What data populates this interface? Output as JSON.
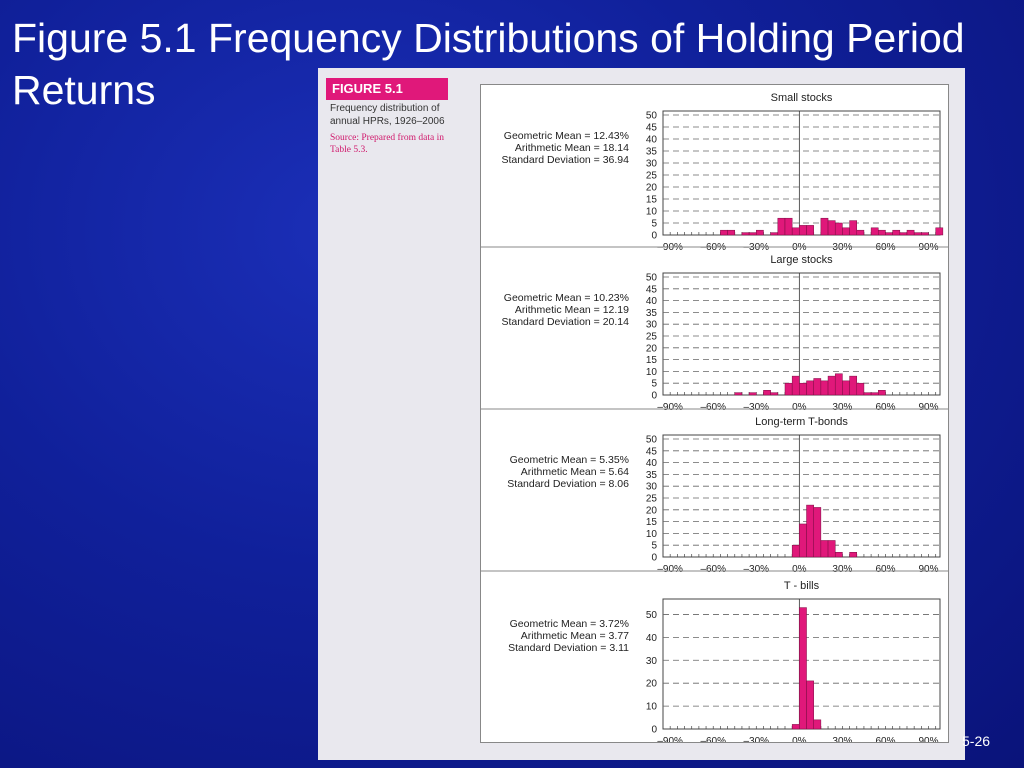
{
  "slide": {
    "title": "Figure 5.1 Frequency Distributions of Holding Period Returns",
    "page_number": "5-26"
  },
  "figure": {
    "badge": "FIGURE 5.1",
    "caption": "Frequency distribution of annual HPRs, 1926–2006",
    "source": "Source: Prepared from data in Table 5.3."
  },
  "colors": {
    "bar": "#e0187a",
    "background": "#10209a",
    "badge": "#e0187a"
  },
  "chart_data": [
    {
      "type": "bar",
      "title": "Small stocks",
      "stats": [
        "Geometric Mean = 12.43%",
        "Arithmetic Mean = 18.14",
        "Standard Deviation = 36.94"
      ],
      "x_tick_labels": [
        "–90%",
        "–60%",
        "–30%",
        "0%",
        "30%",
        "60%",
        "90%"
      ],
      "x_ticks": [
        -90,
        -60,
        -30,
        0,
        30,
        60,
        90
      ],
      "y_tick_labels": [
        "50",
        "45",
        "40",
        "35",
        "30",
        "25",
        "20",
        "15",
        "10",
        "5",
        "0"
      ],
      "ylim": [
        0,
        50
      ],
      "xlim": [
        -95,
        98
      ],
      "bin_width": 5,
      "bins": [
        {
          "x": -55,
          "y": 2
        },
        {
          "x": -50,
          "y": 2
        },
        {
          "x": -40,
          "y": 1
        },
        {
          "x": -35,
          "y": 1
        },
        {
          "x": -30,
          "y": 2
        },
        {
          "x": -20,
          "y": 1
        },
        {
          "x": -15,
          "y": 7
        },
        {
          "x": -10,
          "y": 7
        },
        {
          "x": -5,
          "y": 3
        },
        {
          "x": 0,
          "y": 4
        },
        {
          "x": 5,
          "y": 4
        },
        {
          "x": 15,
          "y": 7
        },
        {
          "x": 20,
          "y": 6
        },
        {
          "x": 25,
          "y": 5
        },
        {
          "x": 30,
          "y": 3
        },
        {
          "x": 35,
          "y": 6
        },
        {
          "x": 40,
          "y": 2
        },
        {
          "x": 50,
          "y": 3
        },
        {
          "x": 55,
          "y": 2
        },
        {
          "x": 60,
          "y": 1
        },
        {
          "x": 65,
          "y": 2
        },
        {
          "x": 70,
          "y": 1
        },
        {
          "x": 75,
          "y": 2
        },
        {
          "x": 80,
          "y": 1
        },
        {
          "x": 85,
          "y": 1
        },
        {
          "x": 95,
          "y": 3
        }
      ]
    },
    {
      "type": "bar",
      "title": "Large stocks",
      "stats": [
        "Geometric Mean = 10.23%",
        "Arithmetic Mean = 12.19",
        "Standard Deviation = 20.14"
      ],
      "x_tick_labels": [
        "–90%",
        "–60%",
        "–30%",
        "0%",
        "30%",
        "60%",
        "90%"
      ],
      "x_ticks": [
        -90,
        -60,
        -30,
        0,
        30,
        60,
        90
      ],
      "y_tick_labels": [
        "50",
        "45",
        "40",
        "35",
        "30",
        "25",
        "20",
        "15",
        "10",
        "5",
        "0"
      ],
      "ylim": [
        0,
        50
      ],
      "xlim": [
        -95,
        98
      ],
      "bin_width": 5,
      "bins": [
        {
          "x": -45,
          "y": 1
        },
        {
          "x": -35,
          "y": 1
        },
        {
          "x": -25,
          "y": 2
        },
        {
          "x": -20,
          "y": 1
        },
        {
          "x": -10,
          "y": 5
        },
        {
          "x": -5,
          "y": 8
        },
        {
          "x": 0,
          "y": 5
        },
        {
          "x": 5,
          "y": 6
        },
        {
          "x": 10,
          "y": 7
        },
        {
          "x": 15,
          "y": 6
        },
        {
          "x": 20,
          "y": 8
        },
        {
          "x": 25,
          "y": 9
        },
        {
          "x": 30,
          "y": 6
        },
        {
          "x": 35,
          "y": 8
        },
        {
          "x": 40,
          "y": 5
        },
        {
          "x": 45,
          "y": 1
        },
        {
          "x": 50,
          "y": 1
        },
        {
          "x": 55,
          "y": 2
        }
      ]
    },
    {
      "type": "bar",
      "title": "Long-term T-bonds",
      "stats": [
        "Geometric Mean = 5.35%",
        "Arithmetic Mean = 5.64",
        "Standard Deviation = 8.06"
      ],
      "x_tick_labels": [
        "–90%",
        "–60%",
        "–30%",
        "0%",
        "30%",
        "60%",
        "90%"
      ],
      "x_ticks": [
        -90,
        -60,
        -30,
        0,
        30,
        60,
        90
      ],
      "y_tick_labels": [
        "50",
        "45",
        "40",
        "35",
        "30",
        "25",
        "20",
        "15",
        "10",
        "5",
        "0"
      ],
      "ylim": [
        0,
        50
      ],
      "xlim": [
        -95,
        98
      ],
      "bin_width": 5,
      "bins": [
        {
          "x": -5,
          "y": 5
        },
        {
          "x": 0,
          "y": 14
        },
        {
          "x": 5,
          "y": 22
        },
        {
          "x": 10,
          "y": 21
        },
        {
          "x": 15,
          "y": 7
        },
        {
          "x": 20,
          "y": 7
        },
        {
          "x": 25,
          "y": 2
        },
        {
          "x": 35,
          "y": 2
        }
      ]
    },
    {
      "type": "bar",
      "title": "T - bills",
      "stats": [
        "Geometric Mean = 3.72%",
        "Arithmetic Mean = 3.77",
        "Standard Deviation = 3.11"
      ],
      "x_tick_labels": [
        "–90%",
        "–60%",
        "–30%",
        "0%",
        "30%",
        "60%",
        "90%"
      ],
      "x_ticks": [
        -90,
        -60,
        -30,
        0,
        30,
        60,
        90
      ],
      "y_tick_labels": [
        "50",
        "40",
        "30",
        "20",
        "10",
        "0"
      ],
      "ylim": [
        0,
        55
      ],
      "xlim": [
        -95,
        98
      ],
      "bin_width": 5,
      "bins": [
        {
          "x": -5,
          "y": 2
        },
        {
          "x": 0,
          "y": 53
        },
        {
          "x": 5,
          "y": 21
        },
        {
          "x": 10,
          "y": 4
        }
      ]
    }
  ]
}
